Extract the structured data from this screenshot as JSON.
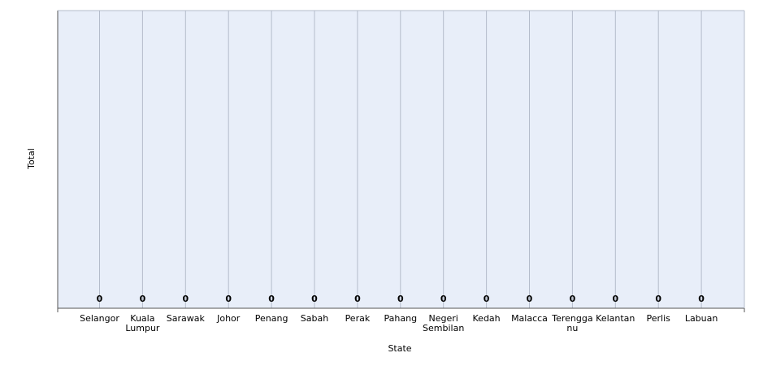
{
  "colors": {
    "plot_background": "#e8eef9",
    "gridline": "#b4bccb",
    "axis": "#555555",
    "text": "#000000"
  },
  "chart_data": {
    "type": "bar",
    "title": "",
    "xlabel": "State",
    "ylabel": "Total",
    "categories": [
      "Selangor",
      "Kuala Lumpur",
      "Sarawak",
      "Johor",
      "Penang",
      "Sabah",
      "Perak",
      "Pahang",
      "Negeri Sembilan",
      "Kedah",
      "Malacca",
      "Terengganu",
      "Kelantan",
      "Perlis",
      "Labuan"
    ],
    "category_label_lines": [
      [
        "Selangor"
      ],
      [
        "Kuala",
        "Lumpur"
      ],
      [
        "Sarawak"
      ],
      [
        "Johor"
      ],
      [
        "Penang"
      ],
      [
        "Sabah"
      ],
      [
        "Perak"
      ],
      [
        "Pahang"
      ],
      [
        "Negeri",
        "Sembilan"
      ],
      [
        "Kedah"
      ],
      [
        "Malacca"
      ],
      [
        "Terengga",
        "nu"
      ],
      [
        "Kelantan"
      ],
      [
        "Perlis"
      ],
      [
        "Labuan"
      ]
    ],
    "series": [
      {
        "values": [
          0,
          0,
          0,
          0,
          0,
          0,
          0,
          0,
          0,
          0,
          0,
          0,
          0,
          0,
          0
        ]
      }
    ],
    "data_labels": [
      "0",
      "0",
      "0",
      "0",
      "0",
      "0",
      "0",
      "0",
      "0",
      "0",
      "0",
      "0",
      "0",
      "0",
      "0"
    ],
    "grid": true,
    "legend": "none"
  }
}
